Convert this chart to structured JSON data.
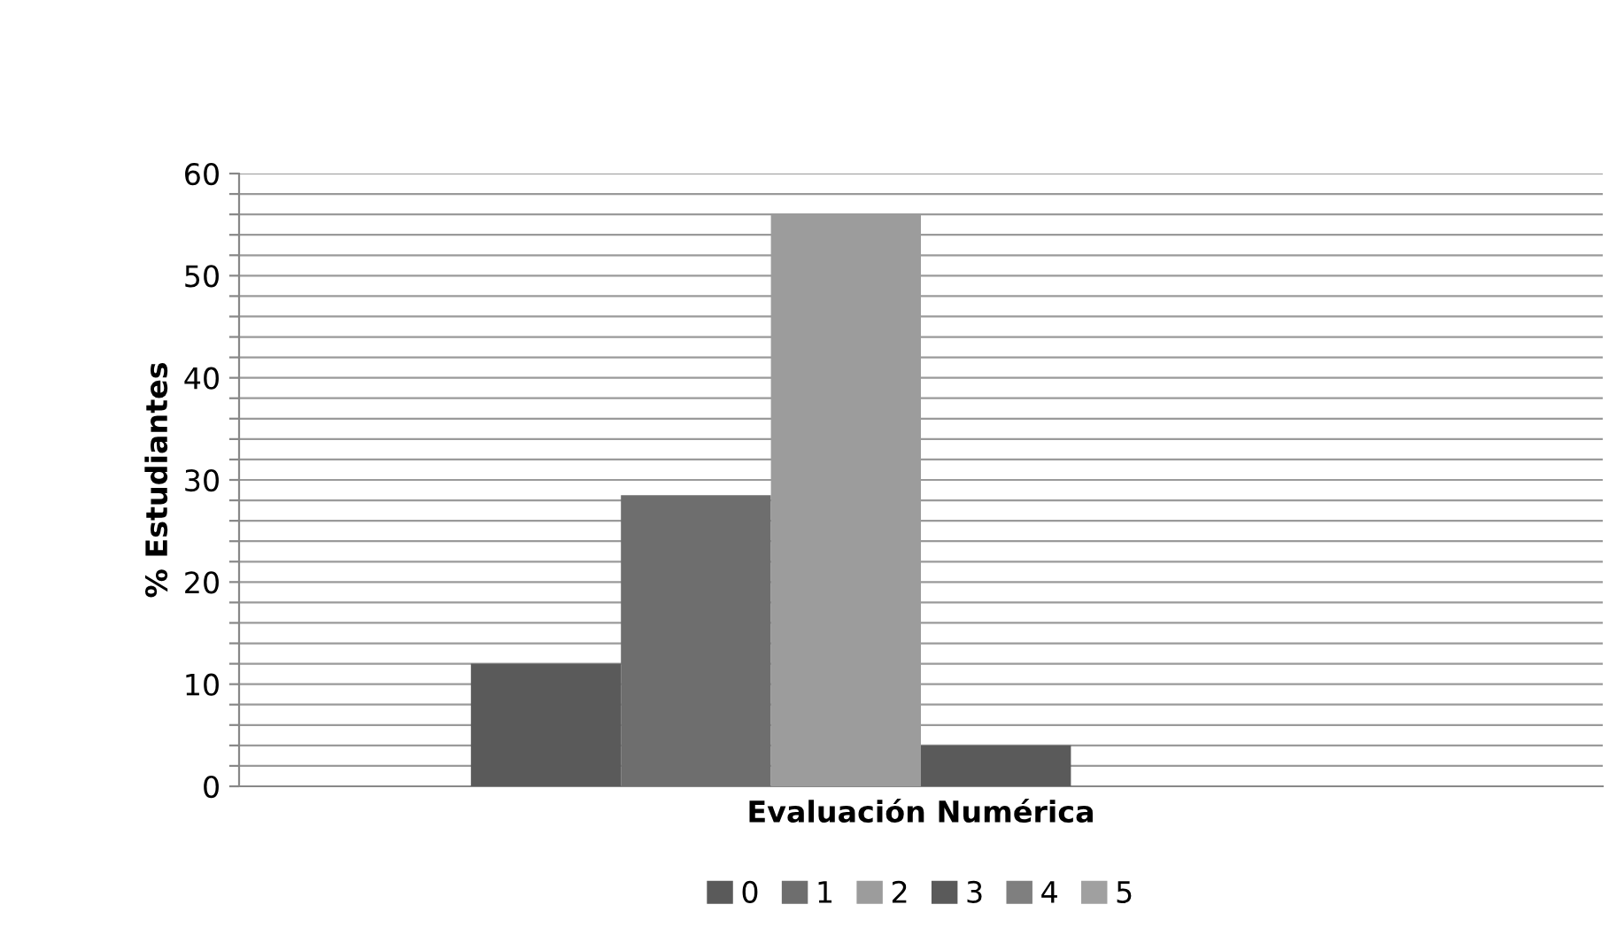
{
  "chart_data": {
    "type": "bar",
    "xlabel": "Evaluación Numérica",
    "ylabel": "% Estudiantes",
    "categories": [
      null
    ],
    "series": [
      {
        "name": "0",
        "color": "#5a5a5a",
        "values": [
          12
        ]
      },
      {
        "name": "1",
        "color": "#6e6e6e",
        "values": [
          28.5
        ]
      },
      {
        "name": "2",
        "color": "#9c9c9c",
        "values": [
          56
        ]
      },
      {
        "name": "3",
        "color": "#5a5a5a",
        "values": [
          4
        ]
      },
      {
        "name": "4",
        "color": "#7f7f7f",
        "values": [
          0
        ]
      },
      {
        "name": "5",
        "color": "#a0a0a0",
        "values": [
          0
        ]
      }
    ],
    "ylim": [
      0,
      60
    ],
    "yticks": [
      0,
      {
        "value": 2,
        "label": null
      },
      {
        "value": 4,
        "label": null
      },
      {
        "value": 6,
        "label": null
      },
      {
        "value": 8,
        "label": null
      },
      10,
      {
        "value": 12,
        "label": null
      },
      {
        "value": 14,
        "label": null
      },
      {
        "value": 16,
        "label": null
      },
      {
        "value": 18,
        "label": null
      },
      20,
      {
        "value": 22,
        "label": null
      },
      {
        "value": 24,
        "label": null
      },
      {
        "value": 26,
        "label": null
      },
      {
        "value": 28,
        "label": null
      },
      30,
      {
        "value": 32,
        "label": null
      },
      {
        "value": 34,
        "label": null
      },
      {
        "value": 36,
        "label": null
      },
      {
        "value": 38,
        "label": null
      },
      40,
      {
        "value": 42,
        "label": null
      },
      {
        "value": 44,
        "label": null
      },
      {
        "value": 46,
        "label": null
      },
      {
        "value": 48,
        "label": null
      },
      50,
      {
        "value": 52,
        "label": null
      },
      {
        "value": 54,
        "label": null
      },
      {
        "value": 56,
        "label": null
      },
      {
        "value": 58,
        "label": null
      },
      60
    ],
    "grid": "y",
    "legend": "bottom"
  }
}
